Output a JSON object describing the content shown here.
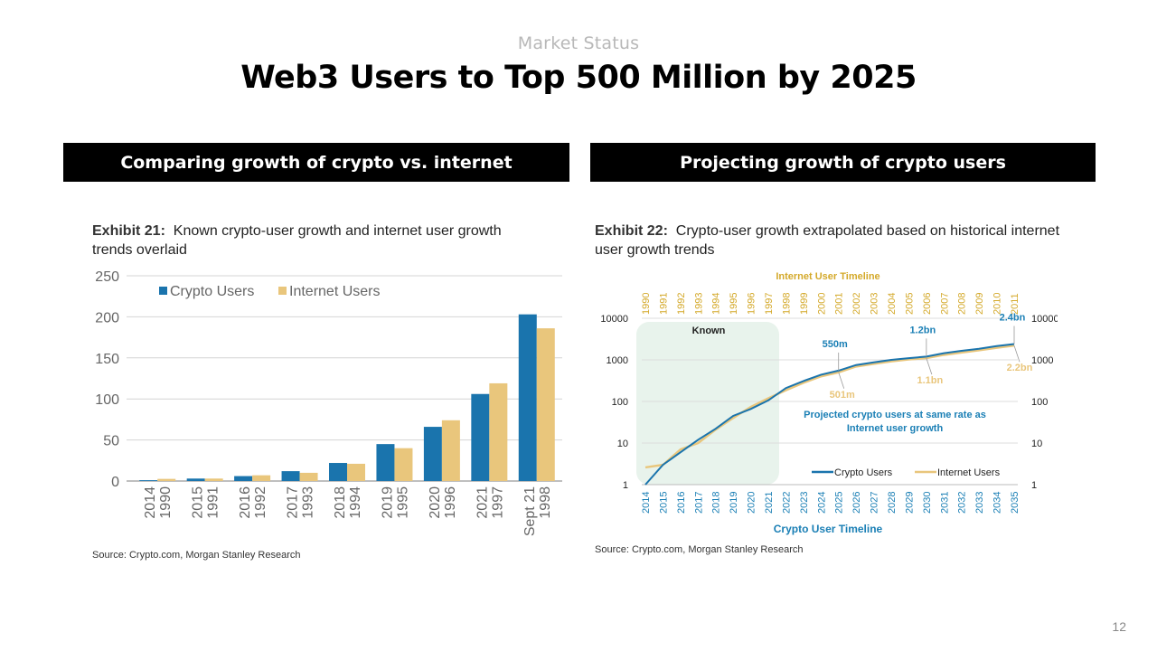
{
  "page": {
    "kicker": "Market Status",
    "title": "Web3 Users to Top 500 Million by 2025",
    "page_number": "12"
  },
  "sections": {
    "left_header": "Comparing growth of crypto vs. internet",
    "right_header": "Projecting growth of crypto users"
  },
  "exhibits": {
    "left": {
      "label": "Exhibit 21:",
      "text": "Known crypto-user growth and internet user growth trends overlaid",
      "source": "Source: Crypto.com, Morgan Stanley Research"
    },
    "right": {
      "label": "Exhibit 22:",
      "text": "Crypto-user growth extrapolated based on historical internet user growth trends",
      "source": "Source: Crypto.com, Morgan Stanley Research"
    }
  },
  "colors": {
    "crypto": "#1a74ad",
    "internet": "#e9c67c",
    "known_shade": "#e8f3ec",
    "annotation_blue": "#1a7fb5"
  },
  "chart_data": [
    {
      "type": "bar",
      "title": "Known crypto-user growth and internet user growth trends overlaid",
      "categories": [
        [
          "2014",
          "1990"
        ],
        [
          "2015",
          "1991"
        ],
        [
          "2016",
          "1992"
        ],
        [
          "2017",
          "1993"
        ],
        [
          "2018",
          "1994"
        ],
        [
          "2019",
          "1995"
        ],
        [
          "2020",
          "1996"
        ],
        [
          "2021",
          "1997"
        ],
        [
          "Sept 21",
          "1998"
        ]
      ],
      "series": [
        {
          "name": "Crypto Users",
          "values": [
            1,
            3,
            6,
            12,
            22,
            45,
            66,
            106,
            203
          ]
        },
        {
          "name": "Internet Users",
          "values": [
            2.6,
            3,
            7,
            10,
            21,
            40,
            74,
            119,
            186
          ]
        }
      ],
      "ylim": [
        0,
        250
      ],
      "yticks": [
        0,
        50,
        100,
        150,
        200,
        250
      ],
      "grid": true,
      "legend": "top-left",
      "xlabel": "",
      "ylabel": ""
    },
    {
      "type": "line",
      "title": "Crypto-user growth extrapolated based on historical internet user growth trends",
      "yscale": "log",
      "ylim": [
        1,
        10000
      ],
      "yticks": [
        1,
        10,
        100,
        1000,
        10000
      ],
      "x_bottom_label": "Crypto User Timeline",
      "x_top_label": "Internet User Timeline",
      "x_bottom": [
        "2014",
        "2015",
        "2016",
        "2017",
        "2018",
        "2019",
        "2020",
        "2021",
        "2022",
        "2023",
        "2024",
        "2025",
        "2026",
        "2027",
        "2028",
        "2029",
        "2030",
        "2031",
        "2032",
        "2033",
        "2034",
        "2035"
      ],
      "x_top": [
        "1990",
        "1991",
        "1992",
        "1993",
        "1994",
        "1995",
        "1996",
        "1997",
        "1998",
        "1999",
        "2000",
        "2001",
        "2002",
        "2003",
        "2004",
        "2005",
        "2006",
        "2007",
        "2008",
        "2009",
        "2010",
        "2011"
      ],
      "series": [
        {
          "name": "Crypto Users",
          "values": [
            1,
            3,
            6,
            12,
            22,
            45,
            66,
            106,
            210,
            310,
            440,
            550,
            750,
            870,
            1000,
            1100,
            1200,
            1450,
            1650,
            1850,
            2150,
            2400
          ]
        },
        {
          "name": "Internet Users",
          "values": [
            2.6,
            3,
            7,
            10,
            21,
            40,
            74,
            119,
            186,
            280,
            400,
            501,
            690,
            800,
            920,
            1020,
            1100,
            1320,
            1500,
            1700,
            1950,
            2200
          ]
        }
      ],
      "shaded_region": {
        "label": "Known",
        "from": "2014",
        "to": "2021"
      },
      "annotations": [
        {
          "text": "550m",
          "x": "2025",
          "series": "Crypto Users"
        },
        {
          "text": "501m",
          "x": "2025",
          "series": "Internet Users"
        },
        {
          "text": "1.2bn",
          "x": "2030",
          "series": "Crypto Users"
        },
        {
          "text": "1.1bn",
          "x": "2030",
          "series": "Internet Users"
        },
        {
          "text": "2.4bn",
          "x": "2035",
          "series": "Crypto Users"
        },
        {
          "text": "2.2bn",
          "x": "2035",
          "series": "Internet Users"
        }
      ],
      "note": "Projected crypto users at same rate as Internet user growth",
      "legend": "bottom-right",
      "grid": true
    }
  ]
}
